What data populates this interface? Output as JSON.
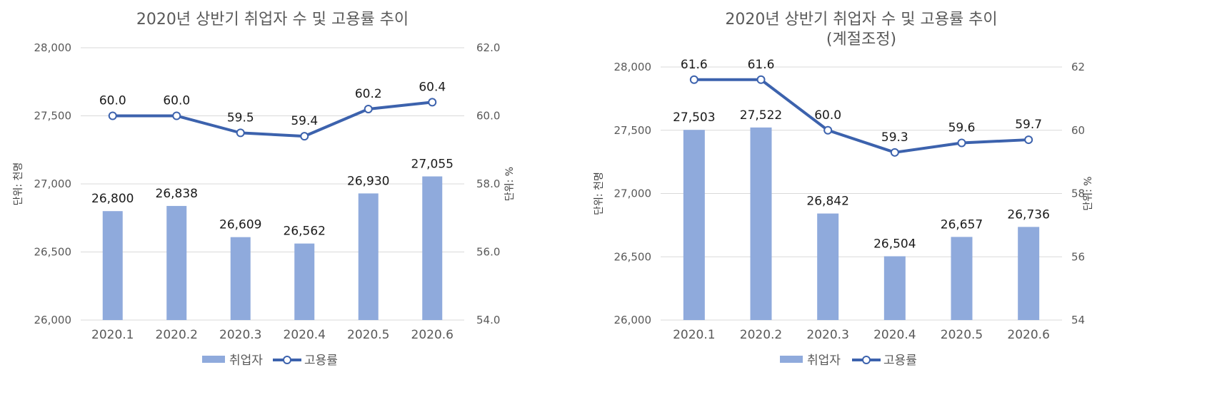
{
  "chart_data": [
    {
      "type": "bar+line",
      "title": "2020년 상반기 취업자 수 및 고용률 추이",
      "subtitle": "",
      "categories": [
        "2020.1",
        "2020.2",
        "2020.3",
        "2020.4",
        "2020.5",
        "2020.6"
      ],
      "series": [
        {
          "name": "취업자",
          "type": "bar",
          "axis": "left",
          "values": [
            26800,
            26838,
            26609,
            26562,
            26930,
            27055
          ],
          "labels": [
            "26,800",
            "26,838",
            "26,609",
            "26,562",
            "26,930",
            "27,055"
          ]
        },
        {
          "name": "고용률",
          "type": "line",
          "axis": "right",
          "values": [
            60.0,
            60.0,
            59.5,
            59.4,
            60.2,
            60.4
          ],
          "labels": [
            "60.0",
            "60.0",
            "59.5",
            "59.4",
            "60.2",
            "60.4"
          ]
        }
      ],
      "y_left": {
        "label": "단위: 천명",
        "range": [
          26000,
          28000
        ],
        "ticks": [
          26000,
          26500,
          27000,
          27500,
          28000
        ],
        "tick_labels": [
          "26,000",
          "26,500",
          "27,000",
          "27,500",
          "28,000"
        ]
      },
      "y_right": {
        "label": "단위: %",
        "range": [
          54,
          62
        ],
        "ticks": [
          54,
          56,
          58,
          60,
          62
        ],
        "tick_labels": [
          "54.0",
          "56.0",
          "58.0",
          "60.0",
          "62.0"
        ]
      },
      "grid": true,
      "legend_position": "bottom",
      "colors": {
        "bar": "#8faadc",
        "line": "#3c62ad"
      }
    },
    {
      "type": "bar+line",
      "title": "2020년 상반기 취업자 수 및 고용률 추이",
      "subtitle": "(계절조정)",
      "categories": [
        "2020.1",
        "2020.2",
        "2020.3",
        "2020.4",
        "2020.5",
        "2020.6"
      ],
      "series": [
        {
          "name": "취업자",
          "type": "bar",
          "axis": "left",
          "values": [
            27503,
            27522,
            26842,
            26504,
            26657,
            26736
          ],
          "labels": [
            "27,503",
            "27,522",
            "26,842",
            "26,504",
            "26,657",
            "26,736"
          ]
        },
        {
          "name": "고용률",
          "type": "line",
          "axis": "right",
          "values": [
            61.6,
            61.6,
            60.0,
            59.3,
            59.6,
            59.7
          ],
          "labels": [
            "61.6",
            "61.6",
            "60.0",
            "59.3",
            "59.6",
            "59.7"
          ]
        }
      ],
      "y_left": {
        "label": "단위: 천명",
        "range": [
          26000,
          28000
        ],
        "ticks": [
          26000,
          26500,
          27000,
          27500,
          28000
        ],
        "tick_labels": [
          "26,000",
          "26,500",
          "27,000",
          "27,500",
          "28,000"
        ]
      },
      "y_right": {
        "label": "단위: %",
        "range": [
          54,
          62
        ],
        "ticks": [
          54,
          56,
          58,
          60,
          62
        ],
        "tick_labels": [
          "54",
          "56",
          "58",
          "60",
          "62"
        ]
      },
      "grid": true,
      "legend_position": "bottom",
      "colors": {
        "bar": "#8faadc",
        "line": "#3c62ad"
      }
    }
  ]
}
